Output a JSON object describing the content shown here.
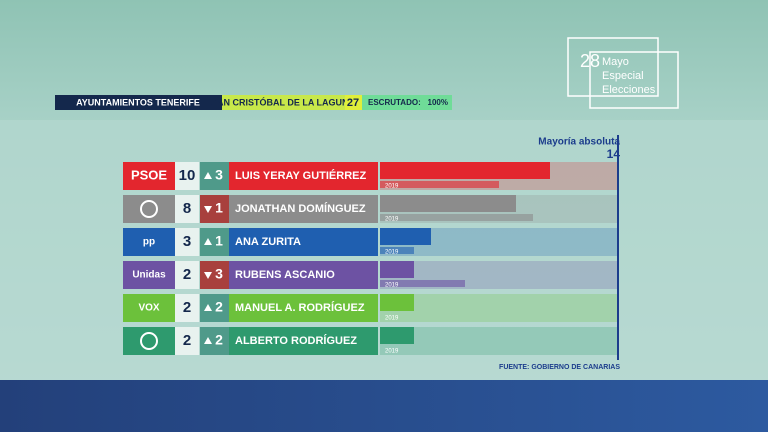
{
  "header": {
    "region": "AYUNTAMIENTOS TENERIFE",
    "municipality": "SAN CRISTÓBAL DE LA LAGUNA",
    "councillors": 27,
    "counted_label": "ESCRUTADO:",
    "counted": "100%"
  },
  "logo": {
    "day": "28",
    "month": "Mayo",
    "line1": "Especial",
    "line2": "Elecciones"
  },
  "source": "FUENTE: GOBIERNO DE CANARIAS",
  "chart_data": {
    "type": "bar",
    "orientation": "horizontal",
    "categories": [
      "PSOE",
      null,
      "pp",
      "Unidas",
      "VOX",
      null
    ],
    "candidates": [
      "LUIS YERAY GUTIÉRREZ",
      "JONATHAN DOMÍNGUEZ",
      "ANA ZURITA",
      "RUBENS ASCANIO",
      "MANUEL A. RODRÍGUEZ",
      "ALBERTO RODRÍGUEZ"
    ],
    "series": [
      {
        "name": "2023",
        "values": [
          10,
          8,
          3,
          2,
          2,
          2
        ]
      },
      {
        "name": "2019",
        "values": [
          7,
          9,
          2,
          5,
          0,
          0
        ]
      }
    ],
    "change": [
      3,
      1,
      1,
      3,
      2,
      2
    ],
    "change_direction": [
      "up",
      "down",
      "up",
      "down",
      "up",
      "up"
    ],
    "colors": [
      "#e3262e",
      "#8c8c8c",
      "#1f5fb0",
      "#6d52a3",
      "#6cc13b",
      "#2e9a6e"
    ],
    "xlim": [
      0,
      14
    ],
    "majority_label": "Mayoría absoluta",
    "majority_value": 14
  }
}
